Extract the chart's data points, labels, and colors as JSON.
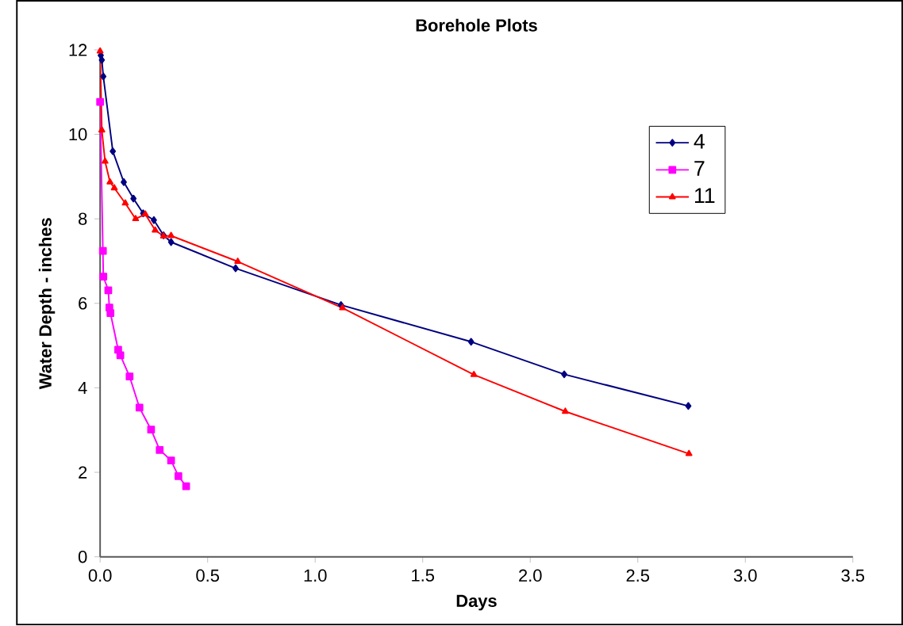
{
  "chart_data": {
    "type": "line",
    "title": "Borehole Plots",
    "xlabel": "Days",
    "ylabel": "Water Depth - inches",
    "xlim": [
      0,
      3.5
    ],
    "xticks": [
      {
        "value": 0,
        "label": "0.0"
      },
      {
        "value": 0.5,
        "label": "0.5"
      },
      {
        "value": 1,
        "label": "1.0"
      },
      {
        "value": 1.5,
        "label": "1.5"
      },
      {
        "value": 2,
        "label": "2.0"
      },
      {
        "value": 2.5,
        "label": "2.5"
      },
      {
        "value": 3,
        "label": "3.0"
      },
      {
        "value": 3.5,
        "label": "3.5"
      }
    ],
    "ylim": [
      0,
      12
    ],
    "yticks": [
      0,
      2,
      4,
      6,
      8,
      10,
      12
    ],
    "grid": false,
    "legend": "top right",
    "series": [
      {
        "name": "4",
        "color": "#000080",
        "marker": "diamond",
        "x": [
          0.003,
          0.008,
          0.015,
          0.059,
          0.11,
          0.155,
          0.2,
          0.25,
          0.295,
          0.33,
          0.63,
          1.12,
          1.725,
          2.158,
          2.735
        ],
        "values": [
          11.87,
          11.76,
          11.37,
          9.6,
          8.87,
          8.48,
          8.13,
          7.97,
          7.61,
          7.45,
          6.83,
          5.96,
          5.09,
          4.32,
          3.57
        ]
      },
      {
        "name": "7",
        "color": "#ff00ff",
        "marker": "square",
        "x": [
          0.0,
          0.013,
          0.015,
          0.038,
          0.043,
          0.048,
          0.084,
          0.094,
          0.137,
          0.183,
          0.237,
          0.277,
          0.33,
          0.364,
          0.4
        ],
        "values": [
          10.77,
          7.24,
          6.63,
          6.31,
          5.9,
          5.77,
          4.9,
          4.77,
          4.27,
          3.53,
          3.01,
          2.53,
          2.28,
          1.91,
          1.67
        ]
      },
      {
        "name": "11",
        "color": "#ff0000",
        "marker": "triangle",
        "x": [
          0.0,
          0.008,
          0.023,
          0.046,
          0.066,
          0.117,
          0.165,
          0.21,
          0.256,
          0.295,
          0.33,
          0.64,
          1.127,
          1.738,
          2.163,
          2.738
        ],
        "values": [
          11.97,
          10.1,
          9.36,
          8.87,
          8.73,
          8.37,
          8.0,
          8.11,
          7.73,
          7.59,
          7.6,
          6.99,
          5.89,
          4.31,
          3.44,
          2.44
        ]
      }
    ]
  }
}
